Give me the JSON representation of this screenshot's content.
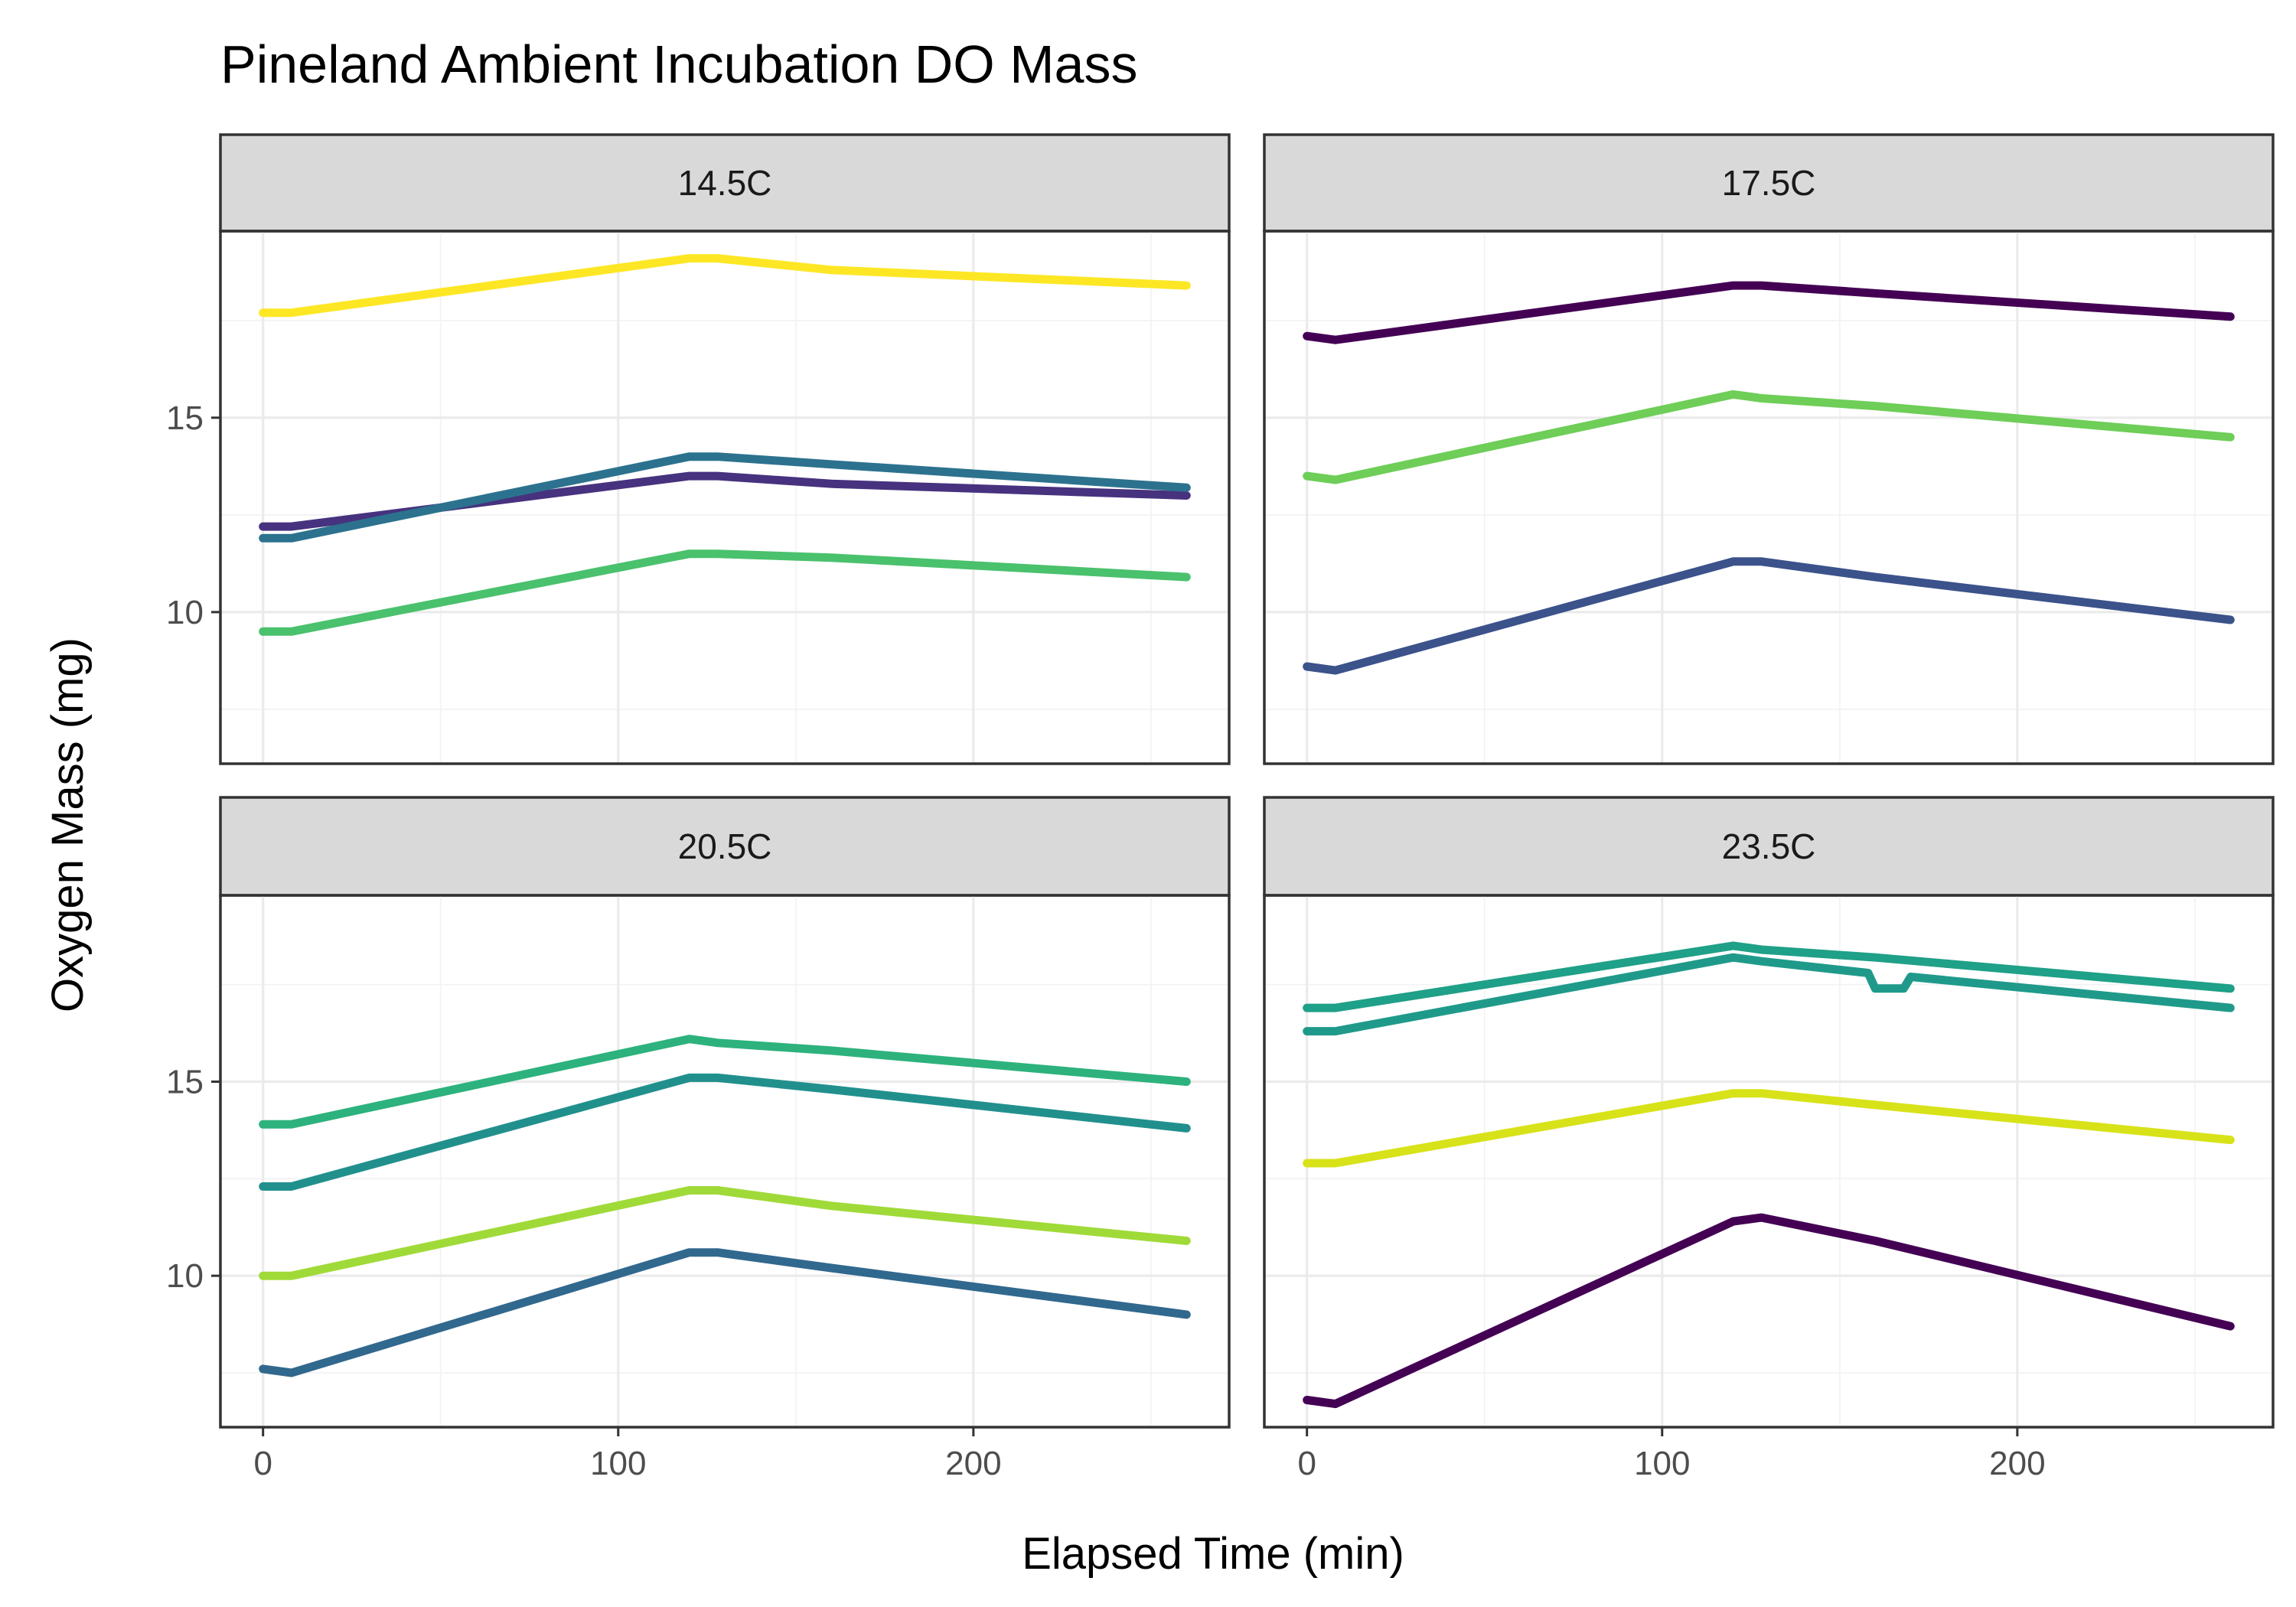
{
  "chart_data": {
    "type": "line",
    "title": "Pineland Ambient Incubation DO Mass",
    "xlabel": "Elapsed Time (min)",
    "ylabel": "Oxygen Mass (mg)",
    "xlim": [
      -12,
      272
    ],
    "ylim": [
      6.1,
      19.8
    ],
    "x_ticks": [
      0,
      100,
      200
    ],
    "y_ticks": [
      10,
      15
    ],
    "grid": true,
    "legend": "none",
    "panels": [
      {
        "label": "14.5C",
        "series": [
          {
            "color": "#fde725",
            "x": [
              0,
              8,
              120,
              128,
              160,
              260
            ],
            "y": [
              17.7,
              17.7,
              19.1,
              19.1,
              18.8,
              18.4
            ]
          },
          {
            "color": "#46327e",
            "x": [
              0,
              8,
              120,
              128,
              160,
              260
            ],
            "y": [
              12.2,
              12.2,
              13.5,
              13.5,
              13.3,
              13.0
            ]
          },
          {
            "color": "#2c728e",
            "x": [
              0,
              8,
              120,
              128,
              160,
              260
            ],
            "y": [
              11.9,
              11.9,
              14.0,
              14.0,
              13.8,
              13.2
            ]
          },
          {
            "color": "#4ac16d",
            "x": [
              0,
              8,
              120,
              128,
              160,
              260
            ],
            "y": [
              9.5,
              9.5,
              11.5,
              11.5,
              11.4,
              10.9
            ]
          }
        ]
      },
      {
        "label": "17.5C",
        "series": [
          {
            "color": "#440154",
            "x": [
              0,
              8,
              120,
              128,
              160,
              260
            ],
            "y": [
              17.1,
              17.0,
              18.4,
              18.4,
              18.2,
              17.6
            ]
          },
          {
            "color": "#6ece58",
            "x": [
              0,
              8,
              120,
              128,
              160,
              260
            ],
            "y": [
              13.5,
              13.4,
              15.6,
              15.5,
              15.3,
              14.5
            ]
          },
          {
            "color": "#3b528b",
            "x": [
              0,
              8,
              120,
              128,
              160,
              260
            ],
            "y": [
              8.6,
              8.5,
              11.3,
              11.3,
              10.9,
              9.8
            ]
          }
        ]
      },
      {
        "label": "20.5C",
        "series": [
          {
            "color": "#2db27d",
            "x": [
              0,
              8,
              120,
              128,
              160,
              260
            ],
            "y": [
              13.9,
              13.9,
              16.1,
              16.0,
              15.8,
              15.0
            ]
          },
          {
            "color": "#21908d",
            "x": [
              0,
              8,
              120,
              128,
              160,
              260
            ],
            "y": [
              12.3,
              12.3,
              15.1,
              15.1,
              14.8,
              13.8
            ]
          },
          {
            "color": "#a0da39",
            "x": [
              0,
              8,
              120,
              128,
              160,
              260
            ],
            "y": [
              10.0,
              10.0,
              12.2,
              12.2,
              11.8,
              10.9
            ]
          },
          {
            "color": "#31688e",
            "x": [
              0,
              8,
              120,
              128,
              160,
              260
            ],
            "y": [
              7.6,
              7.5,
              10.6,
              10.6,
              10.2,
              9.0
            ]
          }
        ]
      },
      {
        "label": "23.5C",
        "series": [
          {
            "color": "#1fa088",
            "x": [
              0,
              8,
              120,
              128,
              160,
              260
            ],
            "y": [
              16.9,
              16.9,
              18.5,
              18.4,
              18.2,
              17.4
            ]
          },
          {
            "color": "#1f9a8a",
            "x": [
              0,
              8,
              120,
              128,
              158,
              160,
              168,
              170,
              260
            ],
            "y": [
              16.3,
              16.3,
              18.2,
              18.1,
              17.8,
              17.4,
              17.4,
              17.7,
              16.9
            ]
          },
          {
            "color": "#d8e219",
            "x": [
              0,
              8,
              120,
              128,
              160,
              260
            ],
            "y": [
              12.9,
              12.9,
              14.7,
              14.7,
              14.4,
              13.5
            ]
          },
          {
            "color": "#440154",
            "x": [
              0,
              8,
              120,
              128,
              160,
              260
            ],
            "y": [
              6.8,
              6.7,
              11.4,
              11.5,
              10.9,
              8.7
            ]
          }
        ]
      }
    ]
  }
}
